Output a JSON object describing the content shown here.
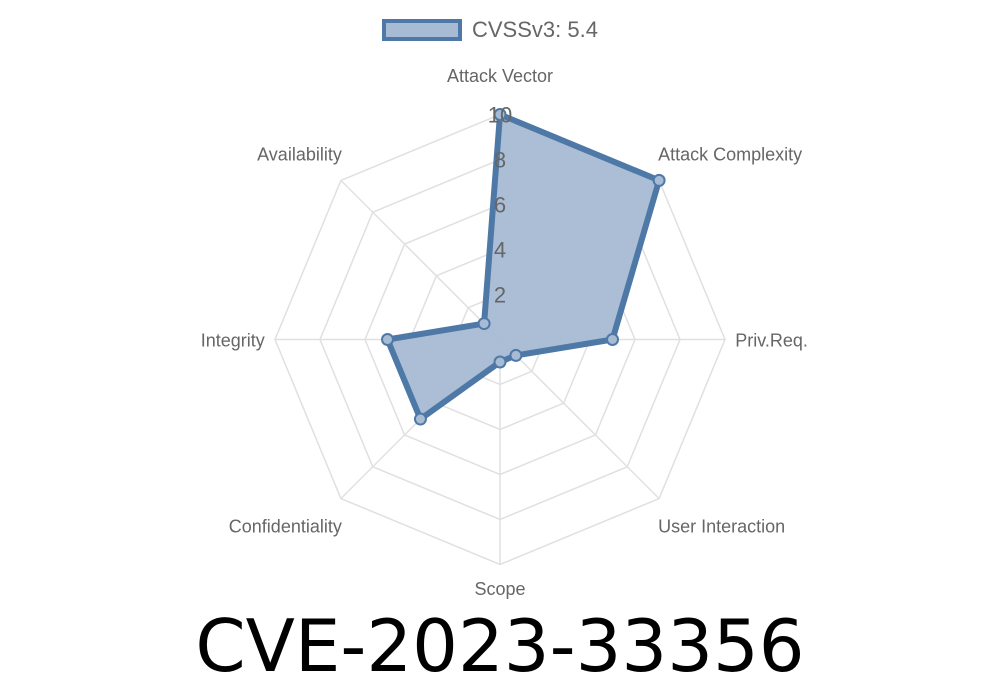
{
  "chart_data": {
    "type": "radar",
    "axes": [
      "Attack Vector",
      "Attack Complexity",
      "Priv.Req.",
      "User Interaction",
      "Scope",
      "Confidentiality",
      "Integrity",
      "Availability"
    ],
    "series": [
      {
        "name": "CVSSv3: 5.4",
        "values": [
          10,
          10,
          5,
          1,
          1,
          5,
          5,
          1
        ]
      }
    ],
    "rlim": [
      0,
      10
    ],
    "ticks": [
      "2",
      "4",
      "6",
      "8",
      "10"
    ],
    "grid": true,
    "legend": "top",
    "colors": {
      "line": "#4e79a7",
      "fill": "#a7bbd4",
      "grid": "#e0e0e0",
      "label": "#666666"
    }
  },
  "title": "CVE-2023-33356"
}
